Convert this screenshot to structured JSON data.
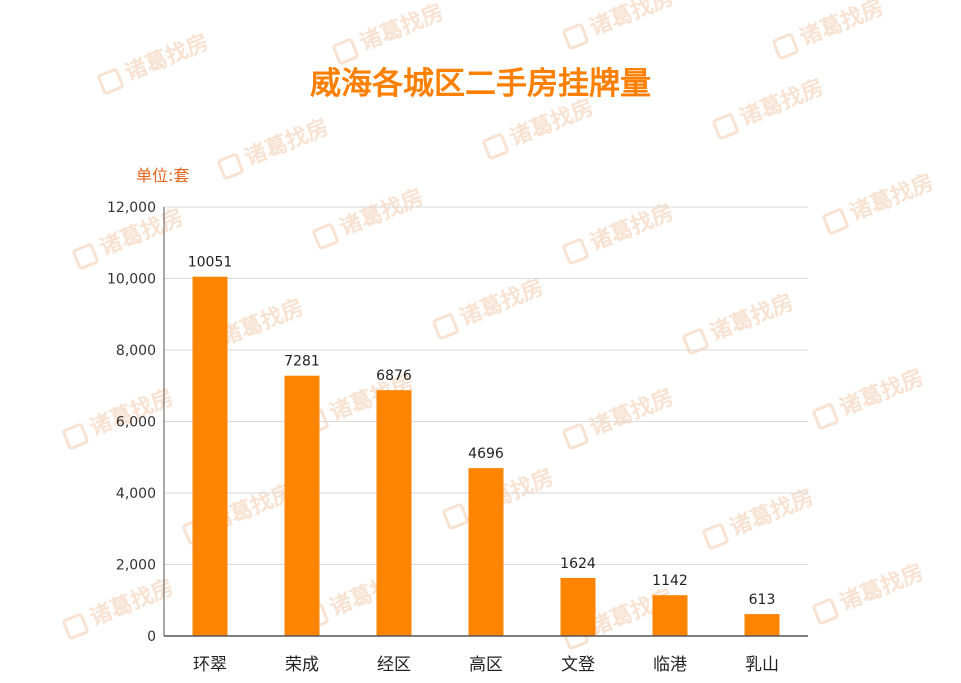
{
  "watermark_text": "诸葛找房",
  "chart_data": {
    "type": "bar",
    "title": "威海各城区二手房挂牌量",
    "unit_label": "单位:套",
    "categories": [
      "环翠",
      "荣成",
      "经区",
      "高区",
      "文登",
      "临港",
      "乳山"
    ],
    "values": [
      10051,
      7281,
      6876,
      4696,
      1624,
      1142,
      613
    ],
    "data_labels": [
      "10051",
      "7281",
      "6876",
      "4696",
      "1624",
      "1142",
      "613"
    ],
    "y_ticks": [
      0,
      2000,
      4000,
      6000,
      8000,
      10000,
      12000
    ],
    "y_tick_labels": [
      "0",
      "2,000",
      "4,000",
      "6,000",
      "8,000",
      "10,000",
      "12,000"
    ],
    "ylim": [
      0,
      12000
    ],
    "grid": true,
    "legend": "none",
    "colors": {
      "bar": "#ff8400",
      "title": "#ff7f00",
      "unit": "#e8641a",
      "grid": "#d9d9d9",
      "axis": "#555555"
    }
  }
}
